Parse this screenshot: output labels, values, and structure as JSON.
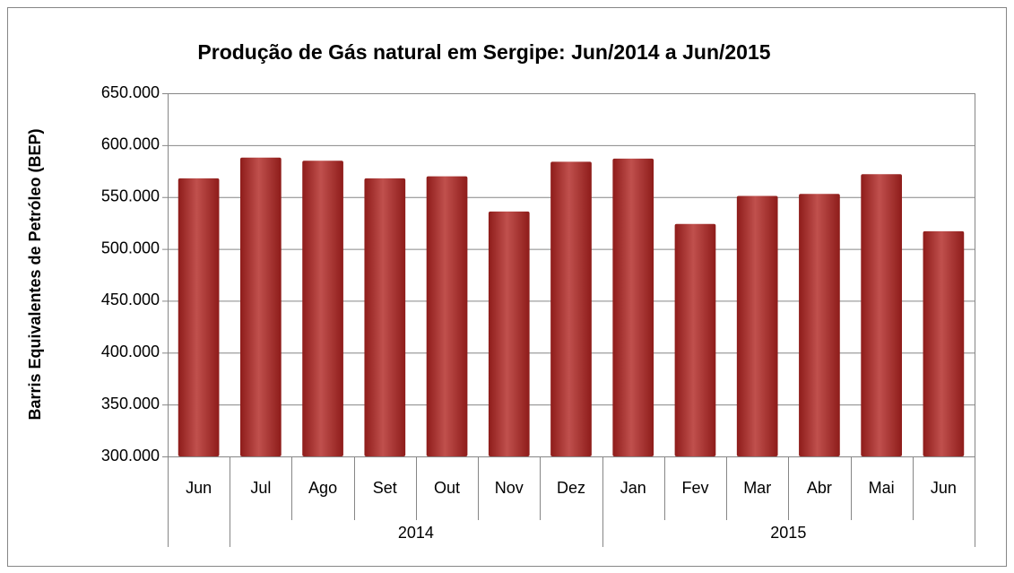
{
  "chart_data": {
    "type": "bar",
    "title": "Produção de Gás natural em Sergipe: Jun/2014 a  Jun/2015",
    "y_axis_label": "Barris Equivalentes de Petróleo (BEP)",
    "categories": [
      [
        "Jun",
        null
      ],
      [
        "Jul",
        "2014"
      ],
      [
        "Ago",
        "2014"
      ],
      [
        "Set",
        "2014"
      ],
      [
        "Out",
        "2014"
      ],
      [
        "Nov",
        "2014"
      ],
      [
        "Dez",
        "2014"
      ],
      [
        "Jan",
        "2015"
      ],
      [
        "Fev",
        "2015"
      ],
      [
        "Mar",
        "2015"
      ],
      [
        "Abr",
        "2015"
      ],
      [
        "Mai",
        "2015"
      ],
      [
        "Jun",
        "2015"
      ]
    ],
    "values": [
      568000,
      588000,
      585000,
      568000,
      570000,
      536000,
      584000,
      587000,
      524000,
      551000,
      553000,
      572000,
      517000
    ],
    "color": "#c0504d",
    "ylim": [
      300000,
      650000
    ],
    "yticks": [
      {
        "value": 300000,
        "label": "300.000"
      },
      {
        "value": 350000,
        "label": "350.000"
      },
      {
        "value": 400000,
        "label": "400.000"
      },
      {
        "value": 450000,
        "label": "450.000"
      },
      {
        "value": 500000,
        "label": "500.000"
      },
      {
        "value": 550000,
        "label": "550.000"
      },
      {
        "value": 600000,
        "label": "600.000"
      },
      {
        "value": 650000,
        "label": "650.000"
      }
    ],
    "grid": true
  }
}
